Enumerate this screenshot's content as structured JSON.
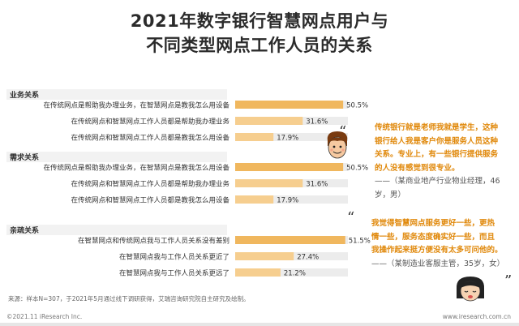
{
  "title_line1": "2021年数字银行智慧网点用户与",
  "title_line2": "不同类型网点工作人员的关系",
  "chart_data": {
    "type": "bar",
    "orientation": "horizontal",
    "xlim": [
      0,
      55
    ],
    "groups": [
      {
        "name": "业务关系",
        "items": [
          {
            "label": "在传统网点是帮助我办理业务，在智慧网点是教我怎么用设备",
            "value": 50.5,
            "value_label": "50.5%"
          },
          {
            "label": "在传统网点和智慧网点工作人员都是帮助我办理业务",
            "value": 31.6,
            "value_label": "31.6%"
          },
          {
            "label": "在传统网点和智慧网点工作人员都是教我怎么用设备",
            "value": 17.9,
            "value_label": "17.9%"
          }
        ]
      },
      {
        "name": "需求关系",
        "items": [
          {
            "label": "在传统网点是帮助我办理业务，在智慧网点是教我怎么用设备",
            "value": 50.5,
            "value_label": "50.5%"
          },
          {
            "label": "在传统网点和智慧网点工作人员都是帮助我办理业务",
            "value": 31.6,
            "value_label": "31.6%"
          },
          {
            "label": "在传统网点和智慧网点工作人员都是教我怎么用设备",
            "value": 17.9,
            "value_label": "17.9%"
          }
        ]
      },
      {
        "name": "亲疏关系",
        "items": [
          {
            "label": "在智慧网点和传统网点我与工作人员关系没有差别",
            "value": 51.5,
            "value_label": "51.5%"
          },
          {
            "label": "在智慧网点我与工作人员关系更近了",
            "value": 27.4,
            "value_label": "27.4%"
          },
          {
            "label": "在智慧网点我与工作人员关系更远了",
            "value": 21.2,
            "value_label": "21.2%"
          }
        ]
      }
    ]
  },
  "colors": {
    "bar": "#f6ce8f",
    "bar_dark": "#f0b75e",
    "track": "#ececec",
    "group_band": "#f2f2f2",
    "highlight_text": "#e0880a"
  },
  "quote1": {
    "open_mark": "“",
    "lines": [
      "传统银行就是老师我就是学生，这种",
      "银行给人我是客户你是服务人员这种",
      "关系。专业上，有一些银行提供服务",
      "的人没有感觉到很专业。"
    ],
    "source_lines": [
      "——（某商业地产行业物业经理，46",
      "岁，男）"
    ]
  },
  "quote2": {
    "open_mark": "“",
    "lines": [
      "我觉得智慧网点服务更好一些，更热",
      "情一些，服务态度确实好一些，而且",
      "我操作起来挺方便没有太多可问他的。"
    ],
    "source_lines": [
      "——（某制造业客服主管，35岁，女）"
    ],
    "close_mark": "”"
  },
  "footer": {
    "source": "来源：样本N=307，于2021年5月通过线下调研获得，艾瑞咨询研究院自主研究及绘制。",
    "copyright": "©2021.11 iResearch Inc.",
    "site": "www.iresearch.com.cn"
  }
}
